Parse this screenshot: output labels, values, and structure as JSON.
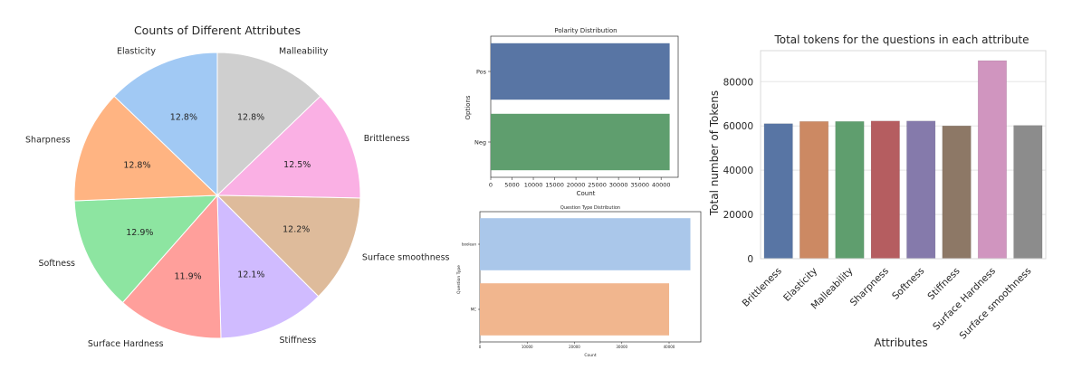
{
  "chart_data": [
    {
      "type": "pie",
      "title": "Counts of Different Attributes",
      "labels": [
        "Malleability",
        "Brittleness",
        "Surface smoothness",
        "Stiffness",
        "Surface Hardness",
        "Softness",
        "Sharpness",
        "Elasticity"
      ],
      "values": [
        12.8,
        12.5,
        12.2,
        12.1,
        11.9,
        12.9,
        12.8,
        12.8
      ],
      "value_labels": [
        "12.8%",
        "12.5%",
        "12.2%",
        "12.1%",
        "11.9%",
        "12.9%",
        "12.8%",
        "12.8%"
      ],
      "colors": [
        "#cfcfcf",
        "#fab0e4",
        "#debb9b",
        "#d0bbff",
        "#ff9f9b",
        "#8de5a1",
        "#ffb482",
        "#a1c9f4"
      ],
      "start_angle_deg": 90,
      "direction": "clockwise"
    },
    {
      "type": "bar",
      "orientation": "horizontal",
      "title": "Polarity Distribution",
      "xlabel": "Count",
      "ylabel": "Options",
      "categories": [
        "Pos",
        "Neg"
      ],
      "values": [
        42000,
        42000
      ],
      "colors": [
        "#5875a4",
        "#5f9e6e"
      ],
      "xlim": [
        0,
        44000
      ],
      "xticks": [
        0,
        5000,
        10000,
        15000,
        20000,
        25000,
        30000,
        35000,
        40000
      ],
      "grid": false
    },
    {
      "type": "bar",
      "orientation": "horizontal",
      "title": "Question Type Distribution",
      "xlabel": "Count",
      "ylabel": "Question Type",
      "categories": [
        "boolean",
        "MC"
      ],
      "values": [
        44500,
        40000
      ],
      "colors": [
        "#aac7ea",
        "#f1b68e"
      ],
      "xlim": [
        0,
        46700
      ],
      "xticks": [
        0,
        10000,
        20000,
        30000,
        40000
      ],
      "grid": false
    },
    {
      "type": "bar",
      "title": "Total tokens for the questions in each attribute",
      "xlabel": "Attributes",
      "ylabel": "Total number of Tokens",
      "categories": [
        "Brittleness",
        "Elasticity",
        "Malleability",
        "Sharpness",
        "Softness",
        "Stiffness",
        "Surface Hardness",
        "Surface smoothness"
      ],
      "values": [
        61000,
        62000,
        62000,
        62200,
        62200,
        60000,
        89500,
        60200
      ],
      "colors": [
        "#5875a4",
        "#cc8963",
        "#5f9e6e",
        "#b55d60",
        "#857aab",
        "#8d7866",
        "#d095bf",
        "#8c8c8c"
      ],
      "ylim": [
        0,
        94000
      ],
      "yticks": [
        0,
        20000,
        40000,
        60000,
        80000
      ],
      "grid": true
    }
  ]
}
